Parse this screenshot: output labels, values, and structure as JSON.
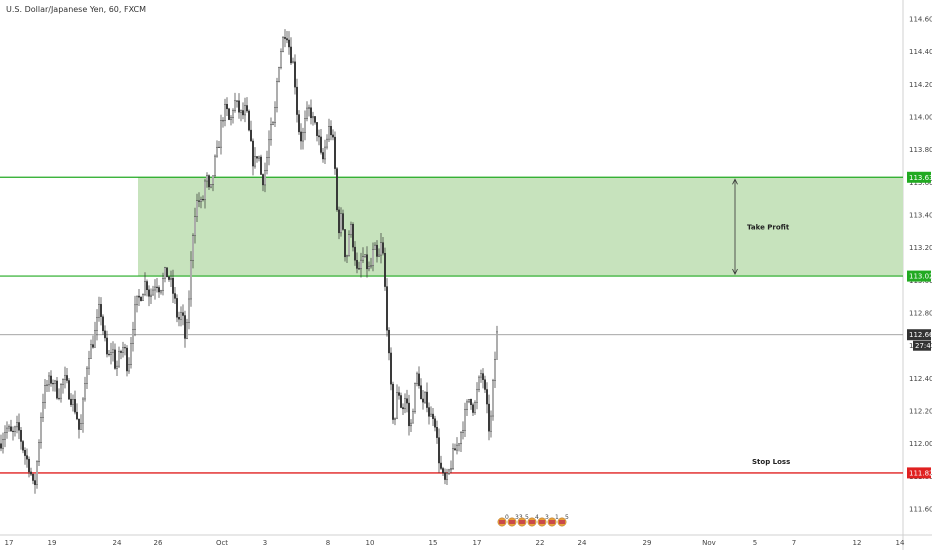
{
  "header": {
    "title": "U.S. Dollar/Japanese Yen, 60, FXCM"
  },
  "colors": {
    "take_profit_line": "#22aa22",
    "take_profit_zone": "#c7e3bd",
    "stop_loss_line": "#e02020",
    "last_price_line": "#888888",
    "candle": "#333333",
    "axis_text": "#444444"
  },
  "chart_data": {
    "type": "candlestick",
    "title": "U.S. Dollar/Japanese Yen, 60, FXCM",
    "ylim": [
      111.54,
      114.72
    ],
    "y_ticks": [
      "114.600",
      "114.400",
      "114.200",
      "114.000",
      "113.800",
      "113.600",
      "113.400",
      "113.200",
      "113.000",
      "112.800",
      "112.600",
      "112.400",
      "112.200",
      "112.000",
      "111.800",
      "111.600"
    ],
    "x_ticks": [
      "17",
      "19",
      "24",
      "26",
      "Oct",
      "3",
      "8",
      "10",
      "15",
      "17",
      "22",
      "24",
      "29",
      "Nov",
      "5",
      "7",
      "12",
      "14"
    ],
    "grid": false,
    "price_path": [
      [
        0,
        112.0
      ],
      [
        6,
        112.1
      ],
      [
        12,
        112.05
      ],
      [
        18,
        112.1
      ],
      [
        24,
        111.95
      ],
      [
        30,
        111.85
      ],
      [
        34,
        111.7
      ],
      [
        38,
        111.95
      ],
      [
        42,
        112.25
      ],
      [
        46,
        112.35
      ],
      [
        52,
        112.4
      ],
      [
        58,
        112.3
      ],
      [
        64,
        112.4
      ],
      [
        70,
        112.3
      ],
      [
        76,
        112.2
      ],
      [
        80,
        112.05
      ],
      [
        84,
        112.3
      ],
      [
        88,
        112.55
      ],
      [
        92,
        112.6
      ],
      [
        96,
        112.7
      ],
      [
        100,
        112.85
      ],
      [
        104,
        112.65
      ],
      [
        108,
        112.5
      ],
      [
        112,
        112.6
      ],
      [
        116,
        112.45
      ],
      [
        120,
        112.55
      ],
      [
        124,
        112.6
      ],
      [
        128,
        112.45
      ],
      [
        132,
        112.7
      ],
      [
        136,
        112.85
      ],
      [
        140,
        112.9
      ],
      [
        146,
        113.0
      ],
      [
        150,
        112.9
      ],
      [
        156,
        113.0
      ],
      [
        160,
        112.95
      ],
      [
        166,
        113.05
      ],
      [
        170,
        113.0
      ],
      [
        174,
        112.9
      ],
      [
        178,
        112.75
      ],
      [
        182,
        112.8
      ],
      [
        186,
        112.6
      ],
      [
        190,
        113.0
      ],
      [
        194,
        113.4
      ],
      [
        198,
        113.5
      ],
      [
        202,
        113.45
      ],
      [
        206,
        113.65
      ],
      [
        210,
        113.5
      ],
      [
        214,
        113.7
      ],
      [
        218,
        113.8
      ],
      [
        222,
        114.0
      ],
      [
        226,
        114.05
      ],
      [
        230,
        113.95
      ],
      [
        234,
        114.1
      ],
      [
        238,
        114.05
      ],
      [
        242,
        114.0
      ],
      [
        246,
        114.05
      ],
      [
        250,
        113.85
      ],
      [
        254,
        113.7
      ],
      [
        258,
        113.8
      ],
      [
        262,
        113.6
      ],
      [
        266,
        113.7
      ],
      [
        270,
        113.9
      ],
      [
        274,
        113.95
      ],
      [
        278,
        114.3
      ],
      [
        282,
        114.45
      ],
      [
        286,
        114.55
      ],
      [
        290,
        114.4
      ],
      [
        294,
        114.3
      ],
      [
        298,
        113.95
      ],
      [
        302,
        113.85
      ],
      [
        306,
        114.0
      ],
      [
        310,
        114.05
      ],
      [
        314,
        113.95
      ],
      [
        318,
        113.9
      ],
      [
        322,
        113.7
      ],
      [
        326,
        113.85
      ],
      [
        330,
        113.95
      ],
      [
        334,
        113.8
      ],
      [
        338,
        113.3
      ],
      [
        342,
        113.4
      ],
      [
        346,
        113.1
      ],
      [
        350,
        113.35
      ],
      [
        354,
        113.2
      ],
      [
        358,
        113.0
      ],
      [
        362,
        113.15
      ],
      [
        366,
        113.1
      ],
      [
        370,
        113.05
      ],
      [
        374,
        113.2
      ],
      [
        378,
        113.1
      ],
      [
        382,
        113.25
      ],
      [
        386,
        112.85
      ],
      [
        390,
        112.4
      ],
      [
        394,
        112.1
      ],
      [
        398,
        112.35
      ],
      [
        402,
        112.2
      ],
      [
        406,
        112.3
      ],
      [
        410,
        112.05
      ],
      [
        414,
        112.3
      ],
      [
        418,
        112.45
      ],
      [
        422,
        112.2
      ],
      [
        426,
        112.3
      ],
      [
        430,
        112.15
      ],
      [
        434,
        112.2
      ],
      [
        438,
        111.95
      ],
      [
        442,
        111.8
      ],
      [
        446,
        111.75
      ],
      [
        450,
        111.85
      ],
      [
        454,
        111.95
      ],
      [
        458,
        112.0
      ],
      [
        462,
        112.1
      ],
      [
        466,
        112.2
      ],
      [
        470,
        112.3
      ],
      [
        474,
        112.2
      ],
      [
        478,
        112.35
      ],
      [
        482,
        112.45
      ],
      [
        486,
        112.25
      ],
      [
        490,
        112.05
      ],
      [
        494,
        112.45
      ],
      [
        497,
        112.667
      ]
    ],
    "take_profit_zone": {
      "top": 113.631,
      "bottom": 113.026,
      "label": "Take Profit"
    },
    "stop_loss": {
      "price": 111.821,
      "label": "Stop Loss"
    },
    "last_price": {
      "price": 112.667,
      "countdown": "27:40"
    },
    "price_tags": [
      "113.631",
      "113.026",
      "112.667",
      "111.821"
    ],
    "event_markers": [
      "0",
      "33",
      "5",
      "4",
      "3",
      "1",
      "5"
    ]
  }
}
